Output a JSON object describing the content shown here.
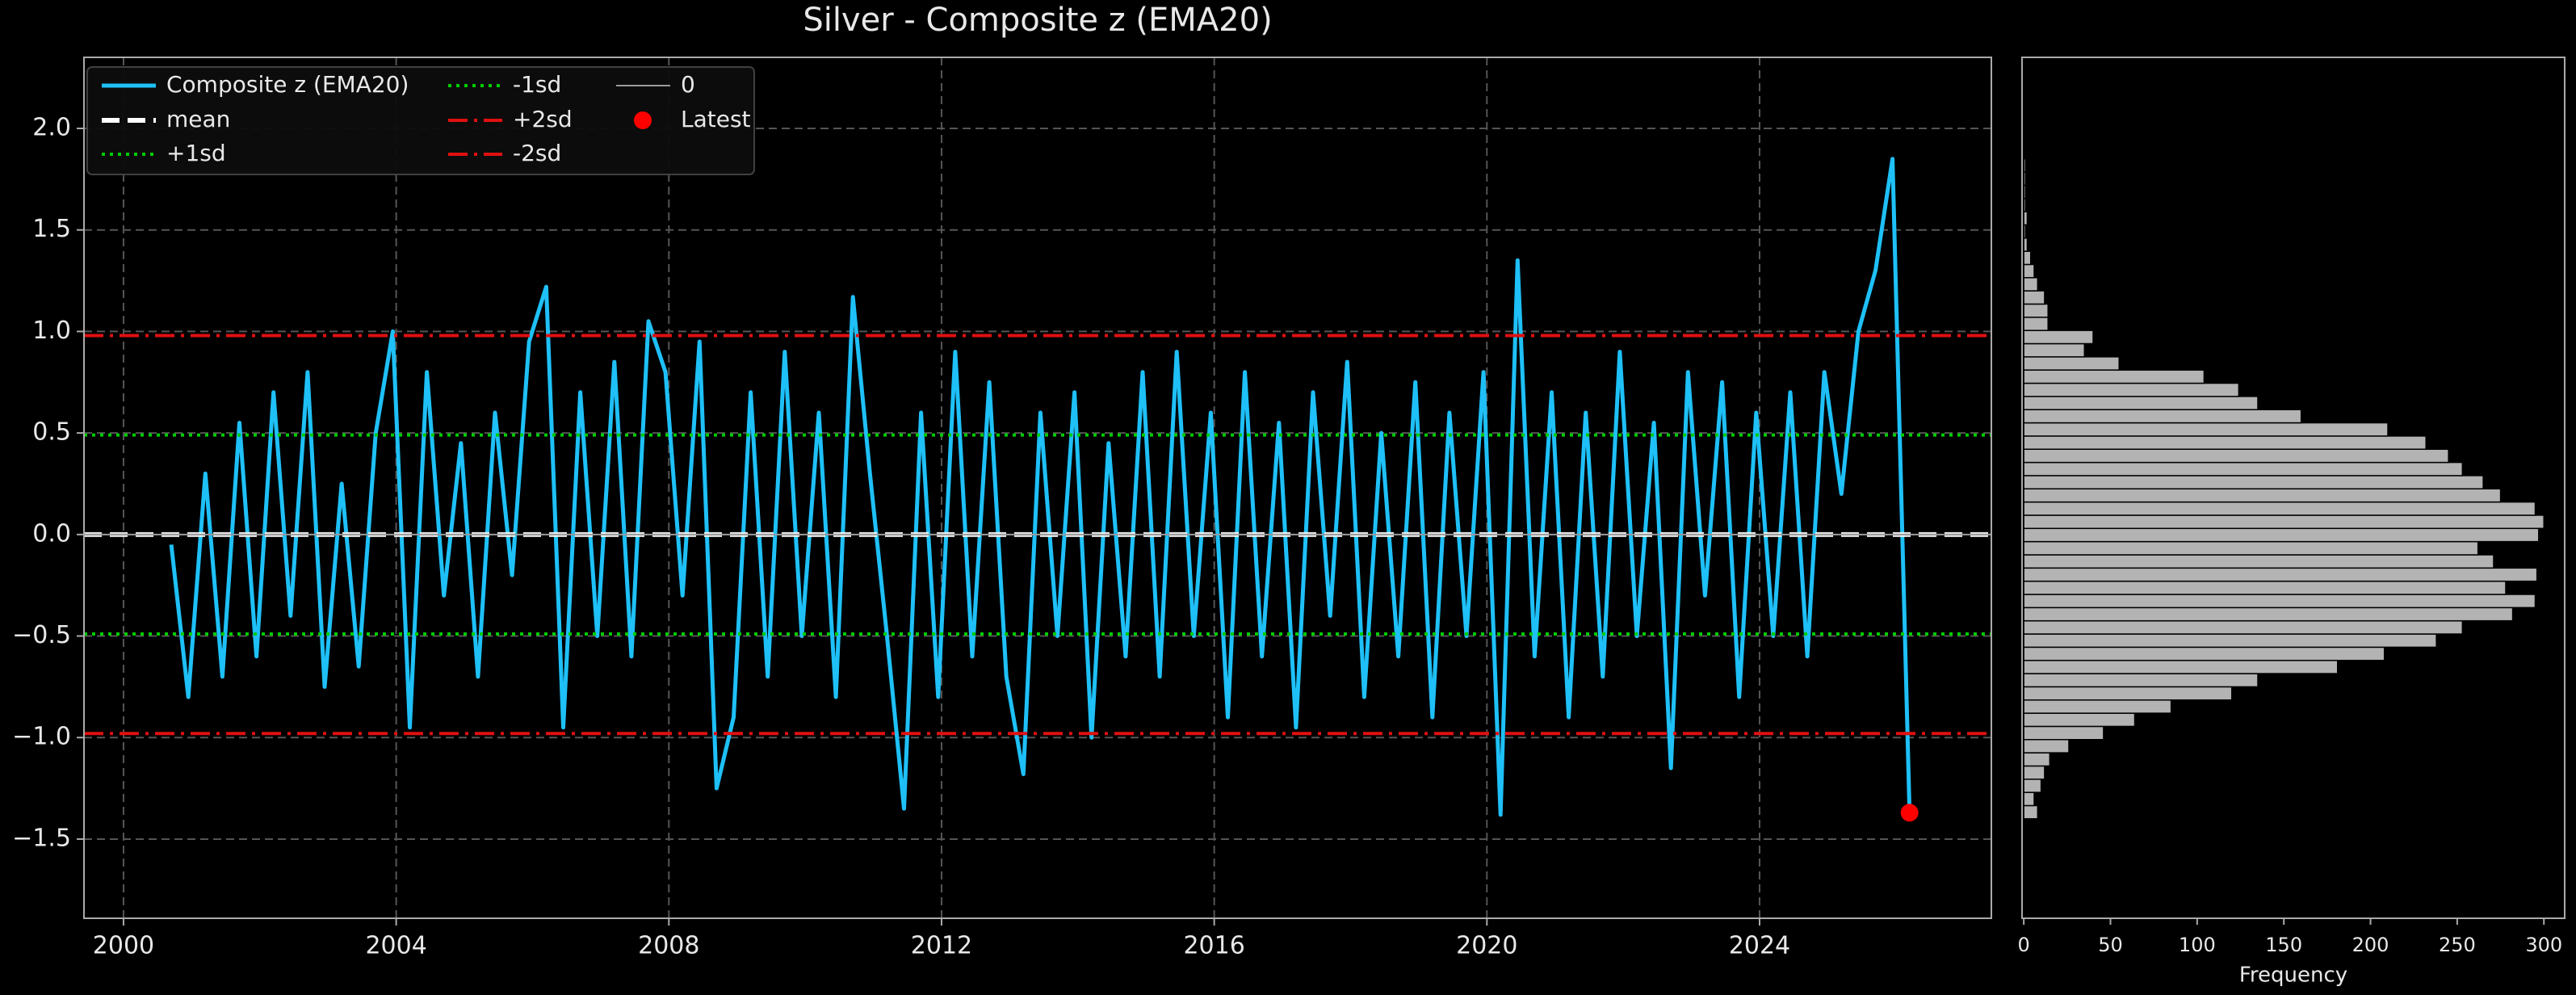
{
  "chart_data": [
    {
      "type": "line",
      "title": "Silver - Composite z (EMA20)",
      "x": [
        2000.7,
        2000.95,
        2001.2,
        2001.45,
        2001.7,
        2001.95,
        2002.2,
        2002.45,
        2002.7,
        2002.95,
        2003.2,
        2003.45,
        2003.7,
        2003.95,
        2004.2,
        2004.45,
        2004.7,
        2004.95,
        2005.2,
        2005.45,
        2005.7,
        2005.95,
        2006.2,
        2006.45,
        2006.7,
        2006.95,
        2007.2,
        2007.45,
        2007.7,
        2007.95,
        2008.2,
        2008.45,
        2008.7,
        2008.95,
        2009.2,
        2009.45,
        2009.7,
        2009.95,
        2010.2,
        2010.45,
        2010.7,
        2010.95,
        2011.2,
        2011.45,
        2011.7,
        2011.95,
        2012.2,
        2012.45,
        2012.7,
        2012.95,
        2013.2,
        2013.45,
        2013.7,
        2013.95,
        2014.2,
        2014.45,
        2014.7,
        2014.95,
        2015.2,
        2015.45,
        2015.7,
        2015.95,
        2016.2,
        2016.45,
        2016.7,
        2016.95,
        2017.2,
        2017.45,
        2017.7,
        2017.95,
        2018.2,
        2018.45,
        2018.7,
        2018.95,
        2019.2,
        2019.45,
        2019.7,
        2019.95,
        2020.2,
        2020.45,
        2020.7,
        2020.95,
        2021.2,
        2021.45,
        2021.7,
        2021.95,
        2022.2,
        2022.45,
        2022.7,
        2022.95,
        2023.2,
        2023.45,
        2023.7,
        2023.95,
        2024.2,
        2024.45,
        2024.7,
        2024.95,
        2025.2,
        2025.45,
        2025.7,
        2025.95,
        2026.2
      ],
      "series": [
        {
          "name": "Composite z (EMA20)",
          "color": "#1ec0f7",
          "values": [
            -0.05,
            -0.8,
            0.3,
            -0.7,
            0.55,
            -0.6,
            0.7,
            -0.4,
            0.8,
            -0.75,
            0.25,
            -0.65,
            0.5,
            1.0,
            -0.95,
            0.8,
            -0.3,
            0.45,
            -0.7,
            0.6,
            -0.2,
            0.95,
            1.22,
            -0.95,
            0.7,
            -0.5,
            0.85,
            -0.6,
            1.05,
            0.8,
            -0.3,
            0.95,
            -1.25,
            -0.9,
            0.7,
            -0.7,
            0.9,
            -0.5,
            0.6,
            -0.8,
            1.17,
            0.3,
            -0.5,
            -1.35,
            0.6,
            -0.8,
            0.9,
            -0.6,
            0.75,
            -0.7,
            -1.18,
            0.6,
            -0.5,
            0.7,
            -1.0,
            0.45,
            -0.6,
            0.8,
            -0.7,
            0.9,
            -0.5,
            0.6,
            -0.9,
            0.8,
            -0.6,
            0.55,
            -0.95,
            0.7,
            -0.4,
            0.85,
            -0.8,
            0.5,
            -0.6,
            0.75,
            -0.9,
            0.6,
            -0.5,
            0.8,
            -1.38,
            1.35,
            -0.6,
            0.7,
            -0.9,
            0.6,
            -0.7,
            0.9,
            -0.5,
            0.55,
            -1.15,
            0.8,
            -0.3,
            0.75,
            -0.8,
            0.6,
            -0.5,
            0.7,
            -0.6,
            0.8,
            0.2,
            1.0,
            1.3,
            1.85,
            -1.37
          ]
        }
      ],
      "reference_lines": [
        {
          "name": "mean",
          "value": 0.0,
          "color": "#ffffff",
          "style": "dashed"
        },
        {
          "name": "+1sd",
          "value": 0.49,
          "color": "#00cc00",
          "style": "dotted"
        },
        {
          "name": "-1sd",
          "value": -0.49,
          "color": "#00cc00",
          "style": "dotted"
        },
        {
          "name": "+2sd",
          "value": 0.98,
          "color": "#e01010",
          "style": "dashdot"
        },
        {
          "name": "-2sd",
          "value": -0.98,
          "color": "#e01010",
          "style": "dashdot"
        },
        {
          "name": "0",
          "value": 0,
          "color": "#9a9a9a",
          "style": "solid"
        }
      ],
      "marker": {
        "name": "Latest",
        "x": 2026.2,
        "y": -1.37,
        "color": "#ff0000"
      },
      "xlim": [
        1999.42,
        2027.4
      ],
      "xticks": [
        2000,
        2004,
        2008,
        2012,
        2016,
        2020,
        2024
      ],
      "ylim": [
        -1.89,
        2.35
      ],
      "yticks": [
        {
          "value": -1.5,
          "label": "−1.5"
        },
        {
          "value": -1.0,
          "label": "−1.0"
        },
        {
          "value": -0.5,
          "label": "−0.5"
        },
        {
          "value": 0.0,
          "label": "0.0"
        },
        {
          "value": 0.5,
          "label": "0.5"
        },
        {
          "value": 1.0,
          "label": "1.0"
        },
        {
          "value": 1.5,
          "label": "1.5"
        },
        {
          "value": 2.0,
          "label": "2.0"
        }
      ],
      "grid": true,
      "legend": "upper left"
    },
    {
      "type": "histogram",
      "orientation": "horizontal",
      "color": "#b3b3b3",
      "bins": [
        -1.4,
        -1.335,
        -1.27,
        -1.205,
        -1.14,
        -1.075,
        -1.01,
        -0.945,
        -0.88,
        -0.815,
        -0.75,
        -0.685,
        -0.62,
        -0.555,
        -0.49,
        -0.425,
        -0.36,
        -0.295,
        -0.23,
        -0.165,
        -0.1,
        -0.035,
        0.03,
        0.095,
        0.16,
        0.225,
        0.29,
        0.355,
        0.42,
        0.485,
        0.55,
        0.615,
        0.68,
        0.745,
        0.81,
        0.875,
        0.94,
        1.005,
        1.07,
        1.135,
        1.2,
        1.265,
        1.33,
        1.395,
        1.46,
        1.525,
        1.59,
        1.655,
        1.72,
        1.785,
        1.85
      ],
      "values": [
        8,
        6,
        10,
        12,
        15,
        26,
        46,
        64,
        85,
        120,
        135,
        181,
        208,
        238,
        253,
        282,
        295,
        278,
        296,
        271,
        262,
        297,
        300,
        295,
        275,
        265,
        253,
        245,
        232,
        210,
        160,
        135,
        124,
        104,
        55,
        35,
        40,
        14,
        14,
        12,
        8,
        6,
        4,
        2,
        1,
        2,
        1,
        1,
        1,
        1
      ],
      "xlabel": "Frequency",
      "xlim": [
        -1,
        312
      ],
      "xticks": [
        0,
        50,
        100,
        150,
        200,
        250,
        300
      ],
      "ylim": [
        -1.89,
        2.35
      ]
    }
  ]
}
